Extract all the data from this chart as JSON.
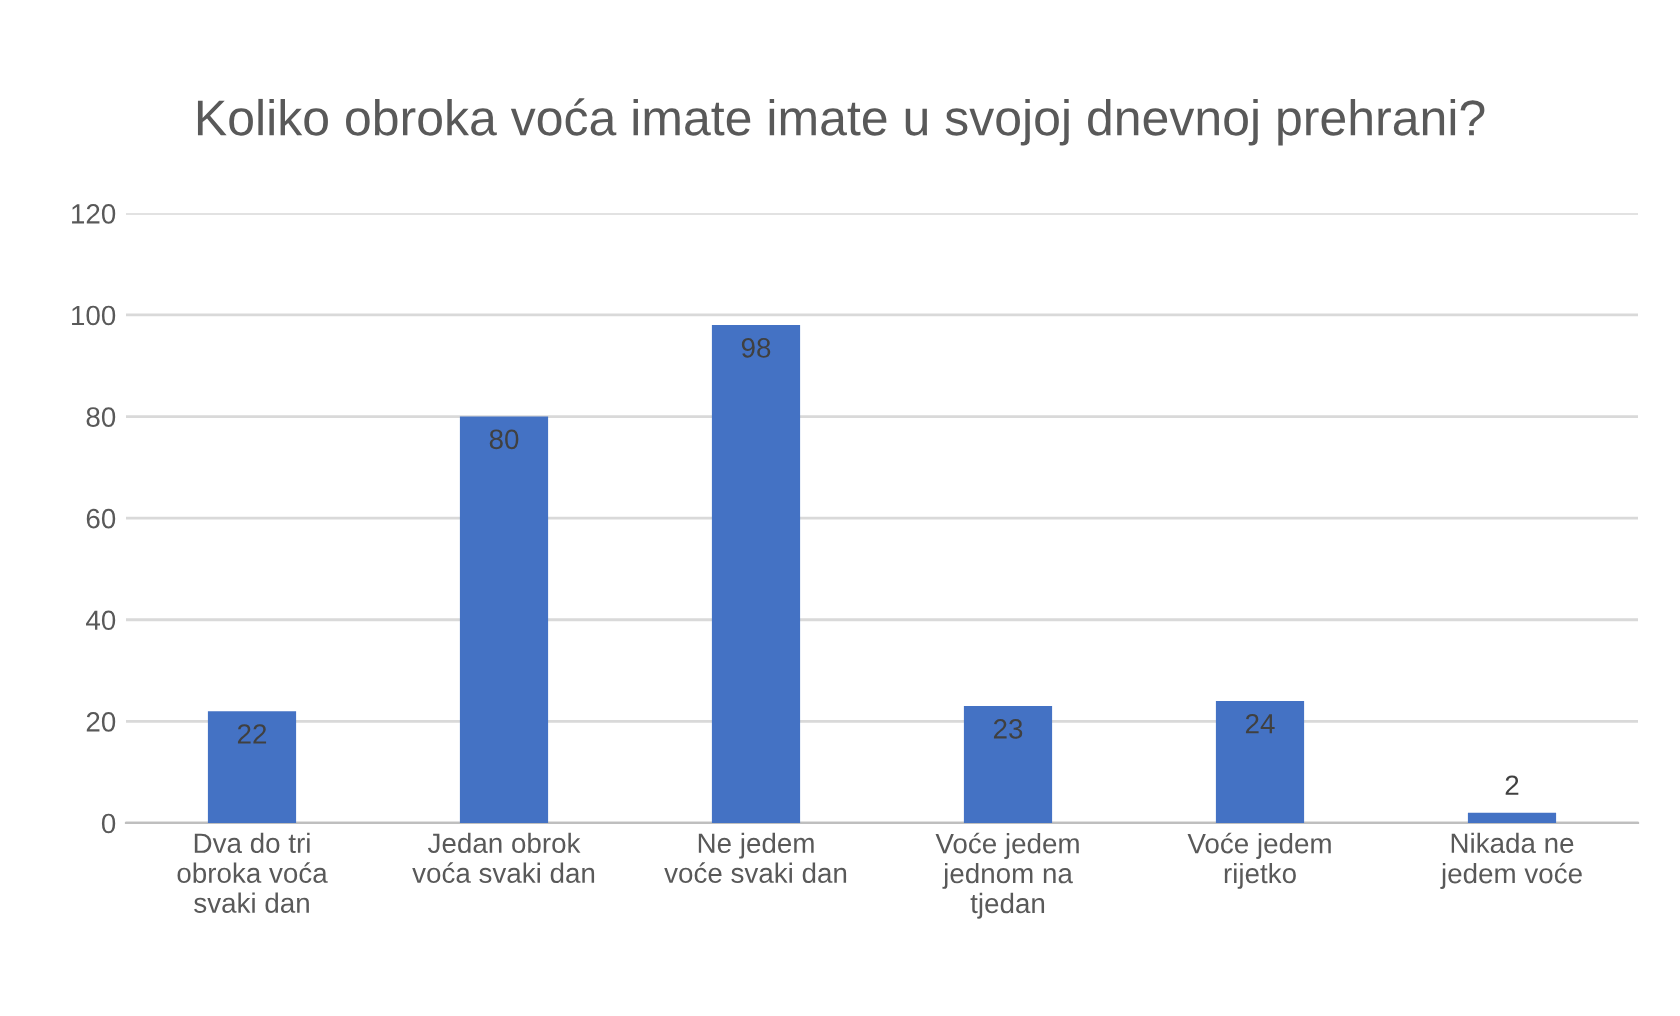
{
  "chart_data": {
    "type": "bar",
    "title": "Koliko obroka voća imate imate u svojoj dnevnoj prehrani?",
    "categories": [
      "Dva do tri\nobroka voća\nsvaki dan",
      "Jedan obrok\nvoća svaki dan",
      "Ne jedem\nvoće svaki dan",
      "Voće jedem\njednom na\ntjedan",
      "Voće jedem\nrijetko",
      "Nikada ne\njedem voće"
    ],
    "values": [
      22,
      80,
      98,
      23,
      24,
      2
    ],
    "color": "#4472c4",
    "ylim": [
      0,
      120
    ],
    "yticks": [
      0,
      20,
      40,
      60,
      80,
      100,
      120
    ],
    "grid": "y",
    "data_labels": true
  }
}
